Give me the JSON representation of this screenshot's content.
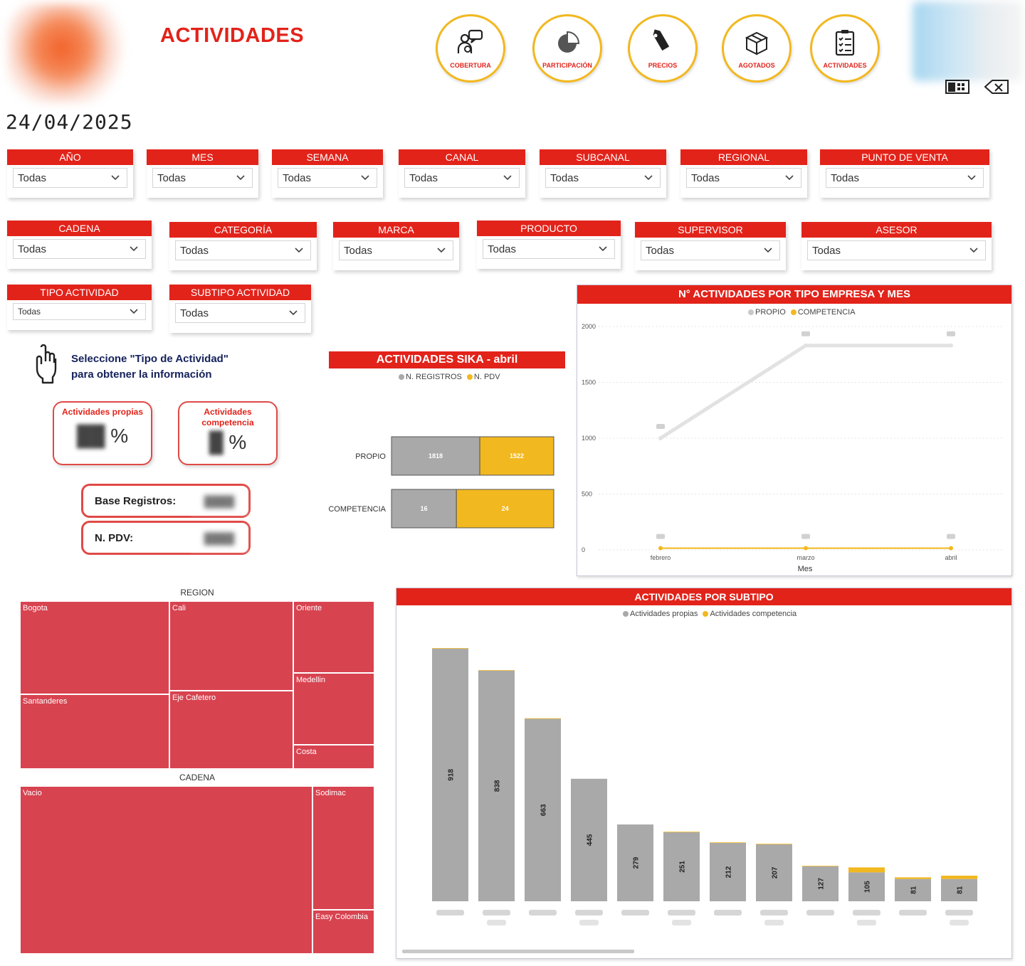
{
  "header": {
    "title": "ACTIVIDADES",
    "date": "24/04/2025"
  },
  "nav": [
    {
      "label": "COBERTURA",
      "icon": "users-chat-icon"
    },
    {
      "label": "PARTICIPACIÓN",
      "icon": "pie-chart-icon"
    },
    {
      "label": "PRECIOS",
      "icon": "price-tag-icon"
    },
    {
      "label": "AGOTADOS",
      "icon": "boxes-icon"
    },
    {
      "label": "ACTIVIDADES",
      "icon": "checklist-icon"
    }
  ],
  "filters": {
    "anio": {
      "label": "AÑO",
      "value": "Todas"
    },
    "mes": {
      "label": "MES",
      "value": "Todas"
    },
    "semana": {
      "label": "SEMANA",
      "value": "Todas"
    },
    "canal": {
      "label": "CANAL",
      "value": "Todas"
    },
    "subcanal": {
      "label": "SUBCANAL",
      "value": "Todas"
    },
    "regional": {
      "label": "REGIONAL",
      "value": "Todas"
    },
    "punto_venta": {
      "label": "PUNTO DE VENTA",
      "value": "Todas"
    },
    "cadena": {
      "label": "CADENA",
      "value": "Todas"
    },
    "categoria": {
      "label": "CATEGORÍA",
      "value": "Todas"
    },
    "marca": {
      "label": "MARCA",
      "value": "Todas"
    },
    "producto": {
      "label": "PRODUCTO",
      "value": "Todas"
    },
    "supervisor": {
      "label": "SUPERVISOR",
      "value": "Todas"
    },
    "asesor": {
      "label": "ASESOR",
      "value": "Todas"
    },
    "tipo_actividad": {
      "label": "TIPO ACTIVIDAD",
      "value": "Todas"
    },
    "subtipo_actividad": {
      "label": "SUBTIPO ACTIVIDAD",
      "value": "Todas"
    }
  },
  "hint": {
    "line1": "Seleccione \"Tipo de Actividad\"",
    "line2": "para obtener la información"
  },
  "kpis": {
    "propias": {
      "title": "Actividades propias",
      "value": "%"
    },
    "competencia": {
      "title_1": "Actividades",
      "title_2": "competencia",
      "value": "%"
    },
    "base_registros": {
      "label": "Base Registros:"
    },
    "n_pdv": {
      "label": "N. PDV:"
    }
  },
  "sika_chart": {
    "title": "ACTIVIDADES SIKA - abril",
    "legend": [
      {
        "name": "N. REGISTROS",
        "color": "#a9a9a9"
      },
      {
        "name": "N. PDV",
        "color": "#f2b81f"
      }
    ]
  },
  "line_chart": {
    "title": "N° ACTIVIDADES POR TIPO EMPRESA Y MES",
    "legend": [
      {
        "name": "PROPIO",
        "color": "#c8c8c8"
      },
      {
        "name": "COMPETENCIA",
        "color": "#f2b81f"
      }
    ],
    "xlabel": "Mes"
  },
  "subtipo_chart": {
    "title": "ACTIVIDADES POR SUBTIPO",
    "legend": [
      {
        "name": "Actividades propias",
        "color": "#a9a9a9"
      },
      {
        "name": "Actividades competencia",
        "color": "#f2b81f"
      }
    ]
  },
  "treemaps": {
    "region": {
      "title": "REGION"
    },
    "cadena": {
      "title": "CADENA"
    }
  },
  "chart_data": [
    {
      "type": "bar",
      "orientation": "horizontal-stacked",
      "categories": [
        "PROPIO",
        "COMPETENCIA"
      ],
      "series": [
        {
          "name": "N. REGISTROS",
          "values": [
            1818,
            16
          ]
        },
        {
          "name": "N. PDV",
          "values": [
            1522,
            24
          ]
        }
      ]
    },
    {
      "type": "line",
      "x": [
        "febrero",
        "marzo",
        "abril"
      ],
      "ylim": [
        0,
        2000
      ],
      "yticks": [
        0,
        500,
        1000,
        1500,
        2000
      ],
      "xlabel": "Mes",
      "series": [
        {
          "name": "PROPIO",
          "values": [
            1000,
            1830,
            1830
          ]
        },
        {
          "name": "COMPETENCIA",
          "values": [
            15,
            15,
            15
          ]
        }
      ]
    },
    {
      "type": "bar",
      "orientation": "vertical-stacked",
      "series": [
        {
          "name": "Actividades propias",
          "values": [
            918,
            838,
            663,
            445,
            279,
            251,
            212,
            207,
            127,
            105,
            81,
            81
          ]
        },
        {
          "name": "Actividades competencia",
          "values": [
            2,
            2,
            2,
            0,
            0,
            2,
            2,
            2,
            2,
            18,
            6,
            12
          ]
        }
      ]
    },
    {
      "type": "treemap",
      "title": "REGION",
      "categories": [
        "Bogota",
        "Cali",
        "Oriente",
        "Medellin",
        "Santanderes",
        "Eje Cafetero",
        "Costa"
      ],
      "values": [
        27,
        21,
        11,
        11,
        26,
        20,
        4
      ]
    },
    {
      "type": "treemap",
      "title": "CADENA",
      "categories": [
        "Vacio",
        "Sodimac",
        "Easy Colombia"
      ],
      "values": [
        82,
        12,
        6
      ]
    }
  ]
}
